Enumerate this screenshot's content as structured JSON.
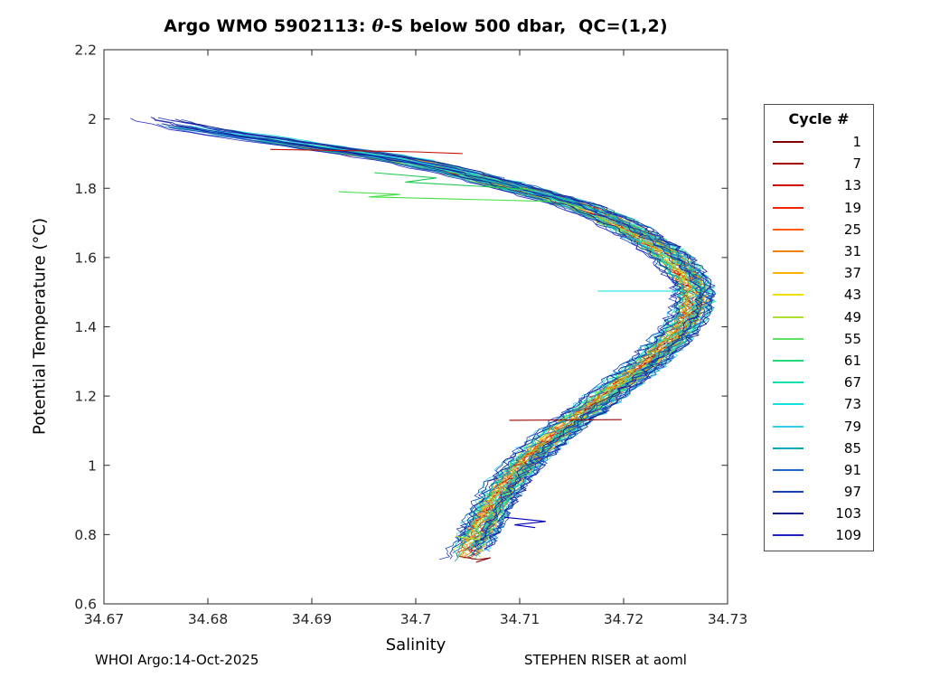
{
  "title": {
    "prefix": "Argo WMO 5902113: ",
    "theta": "θ",
    "suffix": "-S below 500 dbar,  QC=(1,2)"
  },
  "footer": {
    "left": "WHOI Argo:14-Oct-2025",
    "right": "STEPHEN RISER at aoml"
  },
  "chart_data": {
    "type": "line",
    "title": "Argo WMO 5902113: θ-S below 500 dbar, QC=(1,2)",
    "xlabel": "Salinity",
    "ylabel": "Potential Temperature (°C)",
    "xlim": [
      34.67,
      34.73
    ],
    "ylim": [
      0.6,
      2.2
    ],
    "grid": false,
    "xticks": [
      {
        "value": 34.67,
        "label": "34.67"
      },
      {
        "value": 34.68,
        "label": "34.68"
      },
      {
        "value": 34.69,
        "label": "34.69"
      },
      {
        "value": 34.7,
        "label": "34.7"
      },
      {
        "value": 34.71,
        "label": "34.71"
      },
      {
        "value": 34.72,
        "label": "34.72"
      },
      {
        "value": 34.73,
        "label": "34.73"
      }
    ],
    "yticks": [
      {
        "value": 0.6,
        "label": "0.6"
      },
      {
        "value": 0.8,
        "label": "0.8"
      },
      {
        "value": 1.0,
        "label": "1"
      },
      {
        "value": 1.2,
        "label": "1.2"
      },
      {
        "value": 1.4,
        "label": "1.4"
      },
      {
        "value": 1.6,
        "label": "1.6"
      },
      {
        "value": 1.8,
        "label": "1.8"
      },
      {
        "value": 2.0,
        "label": "2"
      },
      {
        "value": 2.2,
        "label": "2.2"
      }
    ],
    "legend": {
      "title": "Cycle #",
      "position": "right-outside"
    },
    "series": [
      {
        "name": "1",
        "color": "#7f0000"
      },
      {
        "name": "7",
        "color": "#a80000"
      },
      {
        "name": "13",
        "color": "#d10000"
      },
      {
        "name": "19",
        "color": "#f52500"
      },
      {
        "name": "25",
        "color": "#ff5a00"
      },
      {
        "name": "31",
        "color": "#f08000"
      },
      {
        "name": "37",
        "color": "#ffb000"
      },
      {
        "name": "43",
        "color": "#f0e000"
      },
      {
        "name": "49",
        "color": "#b0e030"
      },
      {
        "name": "55",
        "color": "#60e060"
      },
      {
        "name": "61",
        "color": "#20d878"
      },
      {
        "name": "67",
        "color": "#00e0a8"
      },
      {
        "name": "73",
        "color": "#10e0e0"
      },
      {
        "name": "79",
        "color": "#30cdef"
      },
      {
        "name": "85",
        "color": "#00a8b8"
      },
      {
        "name": "91",
        "color": "#2068c8"
      },
      {
        "name": "97",
        "color": "#1840b0"
      },
      {
        "name": "103",
        "color": "#101888"
      },
      {
        "name": "109",
        "color": "#2020c0"
      }
    ],
    "base_curve": [
      [
        2.005,
        34.674
      ],
      [
        1.97,
        34.679
      ],
      [
        1.95,
        34.6835
      ],
      [
        1.93,
        34.688
      ],
      [
        1.91,
        34.6925
      ],
      [
        1.89,
        34.697
      ],
      [
        1.87,
        34.7005
      ],
      [
        1.85,
        34.7035
      ],
      [
        1.83,
        34.706
      ],
      [
        1.81,
        34.7085
      ],
      [
        1.79,
        34.711
      ],
      [
        1.77,
        34.7135
      ],
      [
        1.75,
        34.7155
      ],
      [
        1.72,
        34.718
      ],
      [
        1.69,
        34.72
      ],
      [
        1.66,
        34.7218
      ],
      [
        1.63,
        34.7233
      ],
      [
        1.6,
        34.7246
      ],
      [
        1.56,
        34.7258
      ],
      [
        1.52,
        34.7266
      ],
      [
        1.48,
        34.7268
      ],
      [
        1.44,
        34.7265
      ],
      [
        1.4,
        34.7257
      ],
      [
        1.36,
        34.7246
      ],
      [
        1.32,
        34.7232
      ],
      [
        1.28,
        34.7217
      ],
      [
        1.24,
        34.72
      ],
      [
        1.2,
        34.7183
      ],
      [
        1.16,
        34.7166
      ],
      [
        1.12,
        34.7148
      ],
      [
        1.08,
        34.7131
      ],
      [
        1.04,
        34.7116
      ],
      [
        1.0,
        34.7103
      ],
      [
        0.96,
        34.7092
      ],
      [
        0.92,
        34.7082
      ],
      [
        0.88,
        34.7074
      ],
      [
        0.84,
        34.7067
      ],
      [
        0.8,
        34.706
      ],
      [
        0.76,
        34.7053
      ],
      [
        0.72,
        34.7046
      ]
    ],
    "profile": {
      "start_theta_base": 1.895,
      "start_theta_span": 0.105,
      "end_theta_min": 0.72,
      "end_theta_span": 0.07,
      "noise": 0.001
    },
    "anomalies": [
      {
        "name": "cyan-spike",
        "color": "#00e0e0",
        "points": [
          [
            34.7175,
            1.503
          ],
          [
            34.726,
            1.503
          ]
        ]
      },
      {
        "name": "darkred-spike",
        "color": "#990000",
        "points": [
          [
            34.709,
            1.13
          ],
          [
            34.7198,
            1.132
          ]
        ]
      },
      {
        "name": "red-top-line",
        "color": "#c41400",
        "points": [
          [
            34.686,
            1.912
          ],
          [
            34.695,
            1.908
          ],
          [
            34.7,
            1.905
          ],
          [
            34.7045,
            1.9
          ]
        ]
      },
      {
        "name": "green-excursion-1",
        "color": "#44e044",
        "points": [
          [
            34.6926,
            1.79
          ],
          [
            34.6985,
            1.782
          ],
          [
            34.6955,
            1.775
          ],
          [
            34.705,
            1.768
          ],
          [
            34.713,
            1.762
          ]
        ]
      },
      {
        "name": "green-excursion-2",
        "color": "#22cc55",
        "points": [
          [
            34.696,
            1.845
          ],
          [
            34.702,
            1.83
          ],
          [
            34.699,
            1.818
          ],
          [
            34.706,
            1.806
          ],
          [
            34.7115,
            1.795
          ]
        ]
      },
      {
        "name": "blue-bottom-hook",
        "color": "#0000b8",
        "points": [
          [
            34.7085,
            0.85
          ],
          [
            34.7125,
            0.838
          ],
          [
            34.7095,
            0.828
          ],
          [
            34.7115,
            0.82
          ]
        ]
      },
      {
        "name": "darkred-tail",
        "color": "#8b0000",
        "points": [
          [
            34.7042,
            0.737
          ],
          [
            34.706,
            0.728
          ],
          [
            34.7072,
            0.733
          ],
          [
            34.7058,
            0.72
          ]
        ]
      },
      {
        "name": "green-bottom-tick",
        "color": "#b0e030",
        "points": [
          [
            34.7038,
            0.795
          ],
          [
            34.7062,
            0.785
          ]
        ]
      }
    ]
  }
}
